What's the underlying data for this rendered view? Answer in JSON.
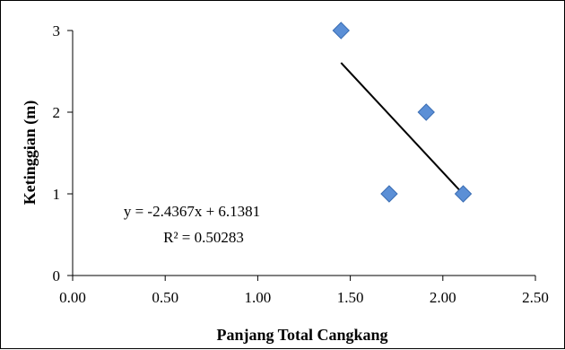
{
  "chart_data": {
    "type": "scatter",
    "title": "",
    "xlabel": "Panjang Total Cangkang",
    "ylabel": "Ketinggian (m)",
    "xlim": [
      0.0,
      2.5
    ],
    "ylim": [
      0,
      3
    ],
    "x_ticks": [
      "0.00",
      "0.50",
      "1.00",
      "1.50",
      "2.00",
      "2.50"
    ],
    "y_ticks": [
      "0",
      "1",
      "2",
      "3"
    ],
    "grid": false,
    "legend": "none",
    "series": [
      {
        "points": [
          {
            "x": 1.45,
            "y": 3
          },
          {
            "x": 1.71,
            "y": 1
          },
          {
            "x": 1.91,
            "y": 2
          },
          {
            "x": 2.11,
            "y": 1
          }
        ],
        "marker": "diamond",
        "color": "#5B8FD6"
      }
    ],
    "trendline": {
      "type": "linear",
      "slope": -2.4367,
      "intercept": 6.1381,
      "x_range": [
        1.45,
        2.11
      ],
      "color": "#000000"
    },
    "annotations": {
      "equation": "y = -2.4367x + 6.1381",
      "r_squared": "R² = 0.50283"
    }
  }
}
